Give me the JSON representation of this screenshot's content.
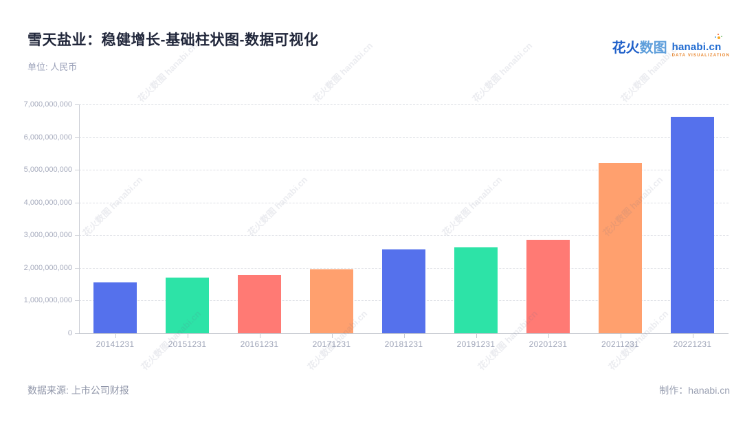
{
  "header": {
    "title": "雪天盐业：稳健增长-基础柱状图-数据可视化",
    "subtitle": "单位: 人民币"
  },
  "logo": {
    "brand_cn_primary": "花火",
    "brand_cn_secondary": "数图",
    "brand_en": "hanabi.cn",
    "brand_tagline": "DATA VISUALIZATION"
  },
  "watermark": {
    "text": "花火数图 hanabi.cn"
  },
  "footer": {
    "source": "数据来源: 上市公司财报",
    "credit": "制作：hanabi.cn"
  },
  "chart_data": {
    "type": "bar",
    "title": "雪天盐业：稳健增长-基础柱状图-数据可视化",
    "unit_label": "单位: 人民币",
    "categories": [
      "20141231",
      "20151231",
      "20161231",
      "20171231",
      "20181231",
      "20191231",
      "20201231",
      "20211231",
      "20221231"
    ],
    "values": [
      1550000000,
      1710000000,
      1780000000,
      1950000000,
      2570000000,
      2620000000,
      2860000000,
      5210000000,
      6630000000
    ],
    "xlabel": "",
    "ylabel": "",
    "ylim": [
      0,
      7000000000
    ],
    "y_tick_interval": 1000000000,
    "y_tick_labels": [
      "0",
      "1,000,000,000",
      "2,000,000,000",
      "3,000,000,000",
      "4,000,000,000",
      "5,000,000,000",
      "6,000,000,000",
      "7,000,000,000"
    ],
    "bar_colors": [
      "#5571ec",
      "#2de3a7",
      "#ff7a74",
      "#ffa06e"
    ],
    "grid": "horizontal-dashed",
    "legend": "none"
  },
  "colors": {
    "background": "#ffffff",
    "title_text": "#20263a",
    "muted_text": "#9aa0b8",
    "axis_line": "#cccfd6",
    "grid_line": "#dcdee4",
    "tick_label": "#a6abbd",
    "logo_blue_dark": "#1e5fc9",
    "logo_blue_light": "#5f9fdb",
    "logo_tagline_orange": "#e8862d"
  }
}
